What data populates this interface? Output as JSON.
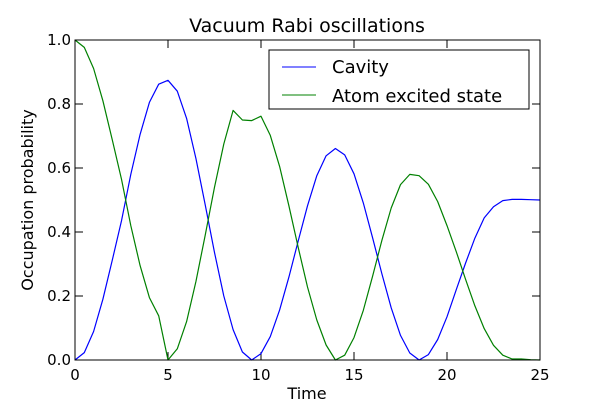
{
  "chart_data": {
    "type": "line",
    "title": "Vacuum Rabi oscillations",
    "xlabel": "Time",
    "ylabel": "Occupation probability",
    "xlim": [
      0,
      25
    ],
    "ylim": [
      0,
      1
    ],
    "xticks": [
      "0",
      "5",
      "10",
      "15",
      "20",
      "25"
    ],
    "yticks": [
      "0.0",
      "0.2",
      "0.4",
      "0.6",
      "0.8",
      "1.0"
    ],
    "grid": false,
    "legend_position": "top-right",
    "x": [
      0,
      0.5,
      1,
      1.5,
      2,
      2.5,
      3,
      3.5,
      4,
      4.5,
      5,
      5.5,
      6,
      6.5,
      7,
      7.5,
      8,
      8.5,
      9,
      9.5,
      10,
      10.5,
      11,
      11.5,
      12,
      12.5,
      13,
      13.5,
      14,
      14.5,
      15,
      15.5,
      16,
      16.5,
      17,
      17.5,
      18,
      18.5,
      19,
      19.5,
      20,
      20.5,
      21,
      21.5,
      22,
      22.5,
      23,
      23.5,
      24,
      24.5,
      25
    ],
    "series": [
      {
        "name": "Cavity",
        "color": "#0000ff",
        "values": [
          0.0,
          0.023,
          0.089,
          0.19,
          0.311,
          0.435,
          0.58,
          0.705,
          0.805,
          0.862,
          0.874,
          0.84,
          0.755,
          0.63,
          0.485,
          0.336,
          0.2,
          0.095,
          0.025,
          0.0,
          0.02,
          0.073,
          0.156,
          0.259,
          0.372,
          0.482,
          0.576,
          0.638,
          0.661,
          0.641,
          0.582,
          0.491,
          0.382,
          0.269,
          0.163,
          0.077,
          0.022,
          0.0,
          0.017,
          0.064,
          0.135,
          0.22,
          0.303,
          0.381,
          0.444,
          0.479,
          0.498,
          0.502,
          0.502,
          0.501,
          0.5
        ]
      },
      {
        "name": "Atom excited state",
        "color": "#008000",
        "values": [
          1.0,
          0.977,
          0.911,
          0.81,
          0.689,
          0.565,
          0.42,
          0.295,
          0.195,
          0.138,
          0.0,
          0.035,
          0.12,
          0.245,
          0.39,
          0.54,
          0.675,
          0.78,
          0.75,
          0.748,
          0.762,
          0.702,
          0.605,
          0.482,
          0.352,
          0.228,
          0.125,
          0.047,
          0.0,
          0.015,
          0.07,
          0.155,
          0.262,
          0.374,
          0.475,
          0.548,
          0.58,
          0.576,
          0.549,
          0.495,
          0.42,
          0.338,
          0.252,
          0.169,
          0.098,
          0.046,
          0.015,
          0.003,
          0.003,
          0.001,
          0.0
        ]
      }
    ]
  }
}
